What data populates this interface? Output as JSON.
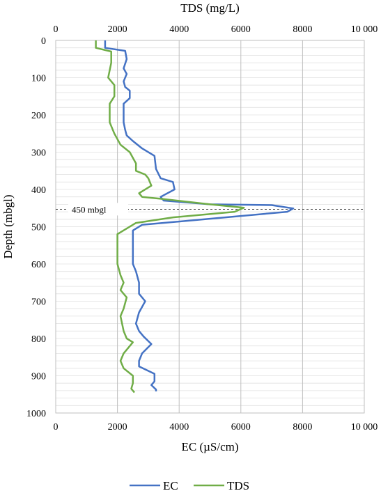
{
  "chart_data": {
    "type": "line",
    "top_axis_title": "TDS (mg/L)",
    "bottom_axis_title": "EC (µS/cm)",
    "y_axis_title": "Depth (mbgl)",
    "xlim": [
      0,
      10000
    ],
    "ylim": [
      0,
      1000
    ],
    "y_inverted": true,
    "x_ticks": [
      "0",
      "2000",
      "4000",
      "6000",
      "8000",
      "10 000"
    ],
    "y_ticks": [
      "0",
      "100",
      "200",
      "300",
      "400",
      "500",
      "600",
      "700",
      "800",
      "900",
      "1000"
    ],
    "grid": "vertical major, horizontal minor",
    "legend_position": "bottom",
    "annotation": {
      "label": "450 mbgl",
      "depth": 453
    },
    "series": [
      {
        "name": "EC",
        "color": "#4472C4",
        "points": [
          [
            1600,
            0
          ],
          [
            1600,
            20
          ],
          [
            2250,
            28
          ],
          [
            2300,
            50
          ],
          [
            2200,
            75
          ],
          [
            2300,
            90
          ],
          [
            2200,
            110
          ],
          [
            2250,
            125
          ],
          [
            2400,
            135
          ],
          [
            2400,
            155
          ],
          [
            2200,
            170
          ],
          [
            2200,
            200
          ],
          [
            2200,
            220
          ],
          [
            2250,
            240
          ],
          [
            2300,
            255
          ],
          [
            2500,
            270
          ],
          [
            2800,
            290
          ],
          [
            3200,
            310
          ],
          [
            3250,
            345
          ],
          [
            3400,
            370
          ],
          [
            3800,
            380
          ],
          [
            3850,
            400
          ],
          [
            3400,
            420
          ],
          [
            3500,
            430
          ],
          [
            5000,
            440
          ],
          [
            7000,
            442
          ],
          [
            7700,
            451
          ],
          [
            7500,
            460
          ],
          [
            5500,
            475
          ],
          [
            2800,
            495
          ],
          [
            2500,
            510
          ],
          [
            2500,
            520
          ],
          [
            2500,
            600
          ],
          [
            2600,
            620
          ],
          [
            2700,
            650
          ],
          [
            2700,
            680
          ],
          [
            2900,
            700
          ],
          [
            2700,
            730
          ],
          [
            2600,
            760
          ],
          [
            2700,
            780
          ],
          [
            2850,
            795
          ],
          [
            3100,
            815
          ],
          [
            2800,
            840
          ],
          [
            2700,
            860
          ],
          [
            2700,
            875
          ],
          [
            3200,
            895
          ],
          [
            3200,
            915
          ],
          [
            3100,
            925
          ],
          [
            3250,
            937
          ],
          [
            3250,
            942
          ]
        ]
      },
      {
        "name": "TDS",
        "color": "#70AD47",
        "points": [
          [
            1300,
            0
          ],
          [
            1300,
            20
          ],
          [
            1800,
            30
          ],
          [
            1800,
            60
          ],
          [
            1700,
            100
          ],
          [
            1900,
            120
          ],
          [
            1900,
            150
          ],
          [
            1750,
            170
          ],
          [
            1750,
            200
          ],
          [
            1750,
            220
          ],
          [
            1900,
            250
          ],
          [
            2100,
            280
          ],
          [
            2400,
            300
          ],
          [
            2600,
            330
          ],
          [
            2600,
            350
          ],
          [
            2900,
            360
          ],
          [
            3000,
            370
          ],
          [
            3100,
            390
          ],
          [
            2700,
            410
          ],
          [
            2800,
            420
          ],
          [
            3400,
            425
          ],
          [
            5000,
            440
          ],
          [
            6100,
            449
          ],
          [
            5800,
            460
          ],
          [
            3800,
            475
          ],
          [
            2600,
            490
          ],
          [
            2000,
            520
          ],
          [
            2000,
            560
          ],
          [
            2000,
            600
          ],
          [
            2100,
            630
          ],
          [
            2200,
            650
          ],
          [
            2100,
            670
          ],
          [
            2300,
            690
          ],
          [
            2200,
            720
          ],
          [
            2100,
            740
          ],
          [
            2200,
            780
          ],
          [
            2300,
            800
          ],
          [
            2500,
            810
          ],
          [
            2200,
            840
          ],
          [
            2100,
            860
          ],
          [
            2200,
            880
          ],
          [
            2500,
            900
          ],
          [
            2500,
            920
          ],
          [
            2450,
            935
          ],
          [
            2550,
            945
          ]
        ]
      }
    ]
  }
}
